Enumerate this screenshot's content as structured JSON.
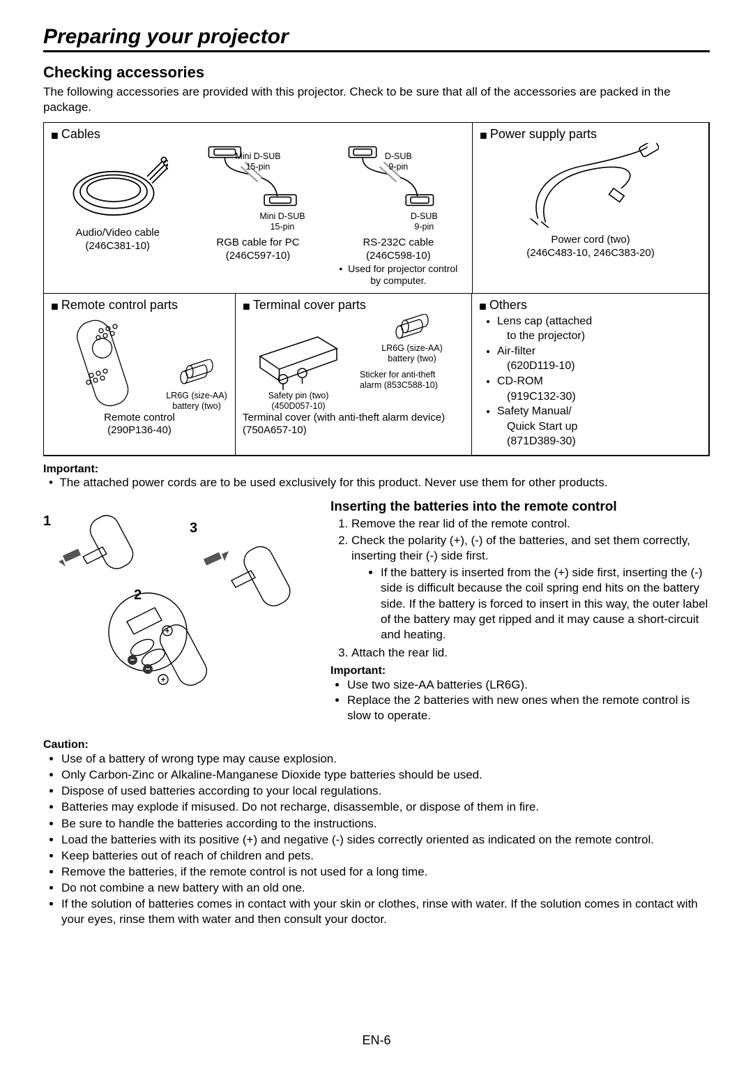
{
  "mainTitle": "Preparing your projector",
  "section": "Checking accessories",
  "intro": "The following accessories are provided with this projector. Check to be sure that all of the accessories are packed in the package.",
  "cells": {
    "cables": {
      "title": "Cables",
      "items": [
        {
          "name": "Audio/Video cable",
          "part": "(246C381-10)"
        },
        {
          "name": "RGB cable for PC",
          "part": "(246C597-10)",
          "conn1": "Mini D-SUB",
          "conn1b": "15-pin",
          "conn2": "Mini D-SUB",
          "conn2b": "15-pin"
        },
        {
          "name": "RS-232C cable",
          "part": "(246C598-10)",
          "conn1": "D-SUB",
          "conn1b": "9-pin",
          "conn2": "D-SUB",
          "conn2b": "9-pin",
          "note1": "Used for projector control",
          "note2": "by computer."
        }
      ]
    },
    "power": {
      "title": "Power supply parts",
      "name": "Power cord (two)",
      "part": "(246C483-10, 246C383-20)"
    },
    "remote": {
      "title": "Remote control parts",
      "batt1": "LR6G (size-AA)",
      "batt2": "battery (two)",
      "name": "Remote control",
      "part": "(290P136-40)"
    },
    "terminal": {
      "title": "Terminal cover parts",
      "safety1": "Safety pin (two)",
      "safety2": "(450D057-10)",
      "batt1": "LR6G (size-AA)",
      "batt2": "battery (two)",
      "sticker1": "Sticker for anti-theft",
      "sticker2": "alarm (853C588-10)",
      "name": "Terminal cover (with anti-theft alarm device)",
      "part": "(750A657-10)"
    },
    "others": {
      "title": "Others",
      "items": [
        "Lens cap (attached<span class='nest'>to the projector)</span>",
        "Air-filter<span class='nest'>(620D119-10)</span>",
        "CD-ROM<span class='nest'>(919C132-30)</span>",
        "Safety Manual/<span class='nest'>Quick Start up</span><span class='nest'>(871D389-30)</span>"
      ]
    }
  },
  "importantLabel": "Important:",
  "importantText": "The attached power cords are to be used exclusively for this product. Never use them for other products.",
  "battTitle": "Inserting the batteries into the remote control",
  "steps": [
    "Remove the rear lid of the remote control.",
    "Check the polarity (+), (-) of the batteries, and set them correctly, inserting their (-) side first.",
    "",
    "Attach the rear lid."
  ],
  "stepNote": "If the battery is inserted from the (+) side first, inserting the (-) side is difficult because the coil spring end hits on the battery side. If the battery is forced to insert in this way, the outer label of the battery may get ripped and it may cause a short-circuit and heating.",
  "imp2Label": "Important:",
  "imp2List": [
    "Use two size-AA batteries (LR6G).",
    "Replace the 2 batteries with new ones when the remote control is slow to operate."
  ],
  "cautionLabel": "Caution:",
  "cautionList": [
    "Use of a battery of wrong type may cause explosion.",
    "Only Carbon-Zinc or Alkaline-Manganese Dioxide type batteries should be used.",
    "Dispose of used batteries according to your local regulations.",
    "Batteries may explode if misused. Do not recharge, disassemble, or dispose of them in fire.",
    "Be sure to handle the batteries according to the instructions.",
    "Load the batteries with its positive (+) and negative (-) sides correctly oriented as indicated on the remote control.",
    "Keep batteries out of reach of children and pets.",
    "Remove the batteries, if the remote control is not used for a long time.",
    "Do not combine a new battery with an old one.",
    "If the solution of batteries comes in contact with your skin or clothes, rinse with water. If the solution comes in contact with your eyes, rinse them with water and then consult your doctor."
  ],
  "pageNum": "EN-6",
  "stepNums": [
    "1",
    "2",
    "3"
  ]
}
